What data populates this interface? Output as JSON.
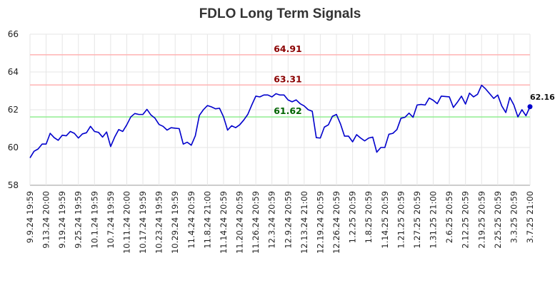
{
  "chart_data": {
    "type": "line",
    "title": "FDLO Long Term Signals",
    "ylim": [
      58,
      66
    ],
    "yticks": [
      "58",
      "60",
      "62",
      "64",
      "66"
    ],
    "grid": true,
    "x_tick_labels": [
      "9.9.24 19:59",
      "9.13.24 20:00",
      "9.19.24 19:59",
      "9.25.24 19:59",
      "10.1.24 19:59",
      "10.7.24 19:59",
      "10.11.24 20:00",
      "10.17.24 19:59",
      "10.23.24 19:59",
      "10.29.24 19:59",
      "11.4.24 20:59",
      "11.8.24 21:00",
      "11.14.24 20:59",
      "11.20.24 20:59",
      "11.26.24 20:59",
      "12.3.24 20:59",
      "12.9.24 20:59",
      "12.13.24 21:00",
      "12.19.24 20:59",
      "12.26.24 20:59",
      "1.2.25 20:59",
      "1.8.25 20:59",
      "1.14.25 20:59",
      "1.21.25 20:59",
      "1.27.25 20:59",
      "1.31.25 21:00",
      "2.6.25 20:59",
      "2.12.25 20:59",
      "2.19.25 20:59",
      "2.25.25 20:59",
      "3.3.25 20:59",
      "3.7.25 21:00"
    ],
    "reference_lines": [
      {
        "value": 64.91,
        "label": "64.91",
        "color": "#ffb3b3",
        "label_color": "#8b0000"
      },
      {
        "value": 63.31,
        "label": "63.31",
        "color": "#ffb3b3",
        "label_color": "#8b0000"
      },
      {
        "value": 61.62,
        "label": "61.62",
        "color": "#90ee90",
        "label_color": "#006400"
      }
    ],
    "series": [
      {
        "color": "#0000cc",
        "values": [
          59.45,
          59.8,
          59.92,
          60.18,
          60.18,
          60.75,
          60.52,
          60.38,
          60.65,
          60.62,
          60.85,
          60.75,
          60.5,
          60.72,
          60.78,
          61.12,
          60.85,
          60.8,
          60.55,
          60.82,
          60.05,
          60.55,
          60.95,
          60.85,
          61.2,
          61.62,
          61.8,
          61.75,
          61.75,
          62.02,
          61.72,
          61.55,
          61.22,
          61.12,
          60.92,
          61.05,
          61.02,
          61.0,
          60.18,
          60.28,
          60.12,
          60.62,
          61.7,
          62.0,
          62.22,
          62.15,
          62.05,
          62.08,
          61.62,
          60.92,
          61.15,
          61.05,
          61.2,
          61.45,
          61.75,
          62.25,
          62.72,
          62.68,
          62.78,
          62.78,
          62.68,
          62.85,
          62.78,
          62.78,
          62.52,
          62.42,
          62.52,
          62.32,
          62.2,
          62.0,
          61.92,
          60.52,
          60.5,
          61.08,
          61.2,
          61.65,
          61.75,
          61.25,
          60.6,
          60.6,
          60.3,
          60.68,
          60.5,
          60.35,
          60.5,
          60.55,
          59.75,
          60.0,
          60.0,
          60.7,
          60.75,
          60.95,
          61.55,
          61.6,
          61.82,
          61.6,
          62.25,
          62.28,
          62.25,
          62.62,
          62.5,
          62.32,
          62.72,
          62.7,
          62.68,
          62.12,
          62.4,
          62.72,
          62.3,
          62.88,
          62.68,
          62.82,
          63.3,
          63.1,
          62.85,
          62.6,
          62.78,
          62.2,
          61.85,
          62.65,
          62.25,
          61.62,
          62.0,
          61.68,
          62.16
        ]
      }
    ],
    "last_value_label": "62.16"
  }
}
